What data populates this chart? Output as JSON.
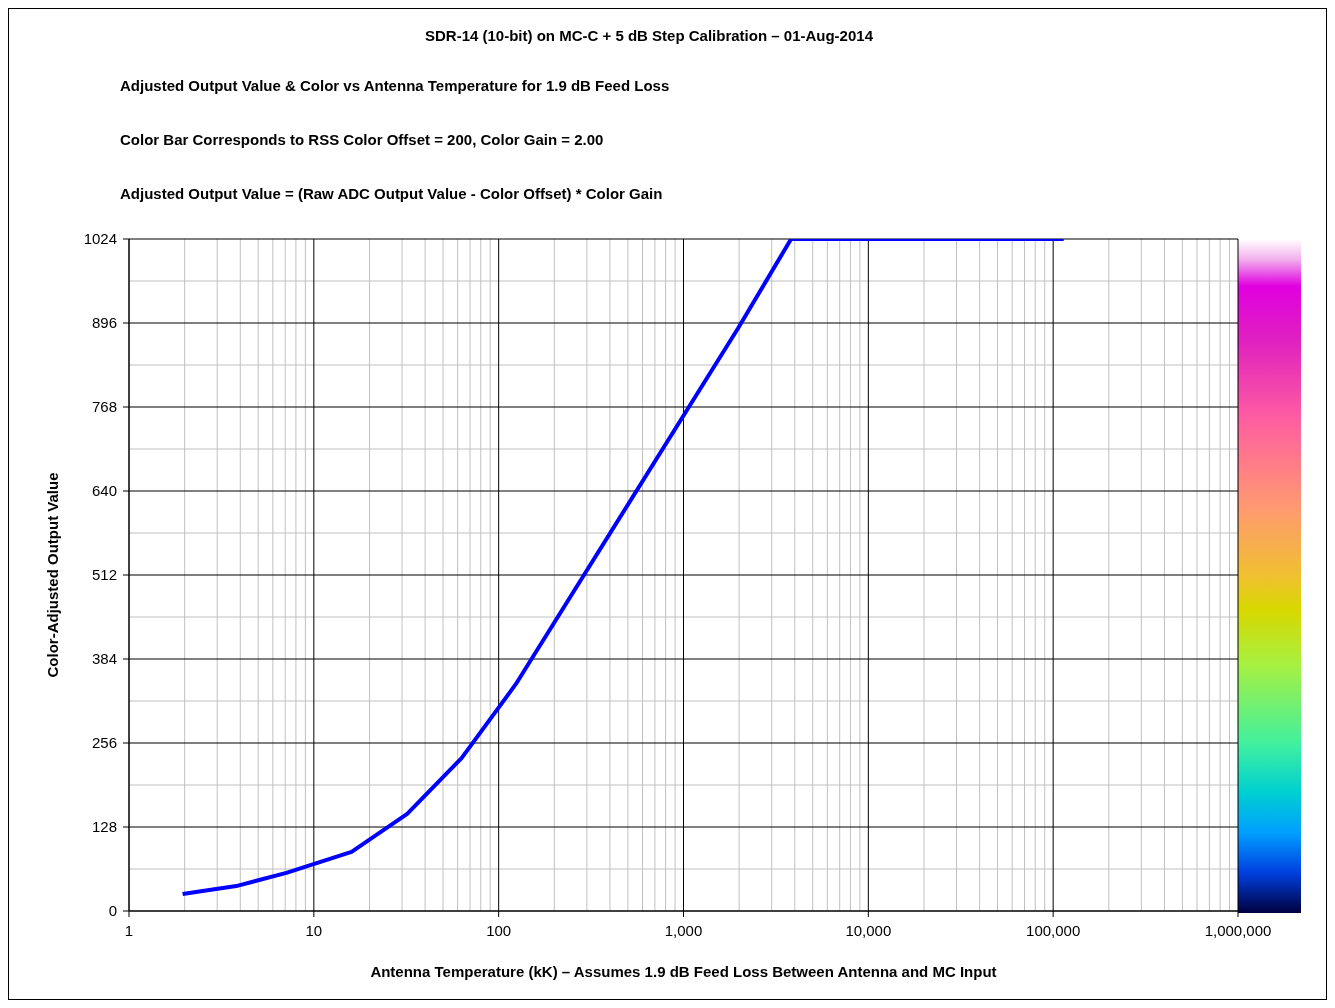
{
  "chart_data": {
    "type": "line",
    "title": "SDR-14 (10-bit) on MC-C + 5 dB Step Calibration – 01-Aug-2014",
    "subtitle": "Adjusted Output Value & Color vs Antenna Temperature for 1.9 dB Feed Loss",
    "annotations": [
      "Color Bar Corresponds to RSS Color Offset = 200, Color Gain = 2.00",
      "Adjusted Output Value = (Raw ADC Output Value - Color Offset) * Color Gain"
    ],
    "xlabel": "Antenna Temperature (kK) – Assumes 1.9 dB Feed Loss Between Antenna and MC Input",
    "ylabel": "Color-Adjusted Output Value",
    "x": [
      1.95,
      3.8,
      7.1,
      16,
      32,
      63,
      124,
      1974,
      3820,
      114000
    ],
    "series": [
      {
        "color": "#0000ff",
        "values": [
          26,
          38,
          58,
          90,
          148,
          233,
          346,
          888,
          1024,
          1024
        ]
      }
    ],
    "log": "x",
    "marker": "none",
    "line_style": "solid",
    "grid": true,
    "legend": false,
    "xlim": [
      1,
      1000000
    ],
    "xticks": [
      1,
      10,
      100,
      {
        "value": 1000,
        "label": "1,000"
      },
      {
        "value": 10000,
        "label": "10,000"
      },
      {
        "value": 100000,
        "label": "100,000"
      },
      {
        "value": 1000000,
        "label": "1,000,000"
      }
    ],
    "ylim": [
      0,
      1024
    ],
    "yticks": [
      0,
      128,
      256,
      384,
      512,
      640,
      768,
      896,
      1024
    ]
  }
}
